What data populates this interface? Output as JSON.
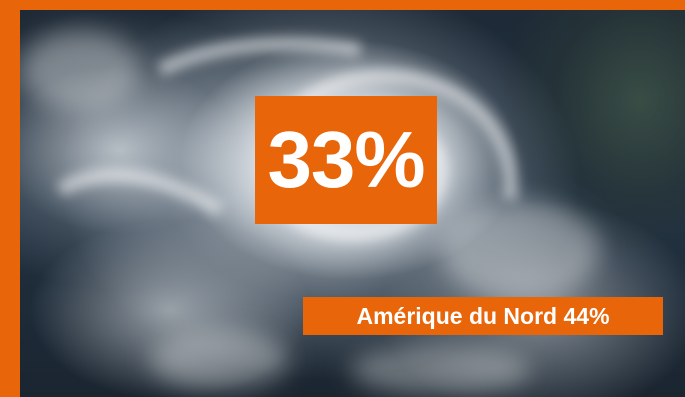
{
  "image": {
    "subject": "satellite-hurricane-photo",
    "accent_color": "#e8650a"
  },
  "headline_percentage": "33%",
  "region_label": "Amérique du Nord 44%"
}
